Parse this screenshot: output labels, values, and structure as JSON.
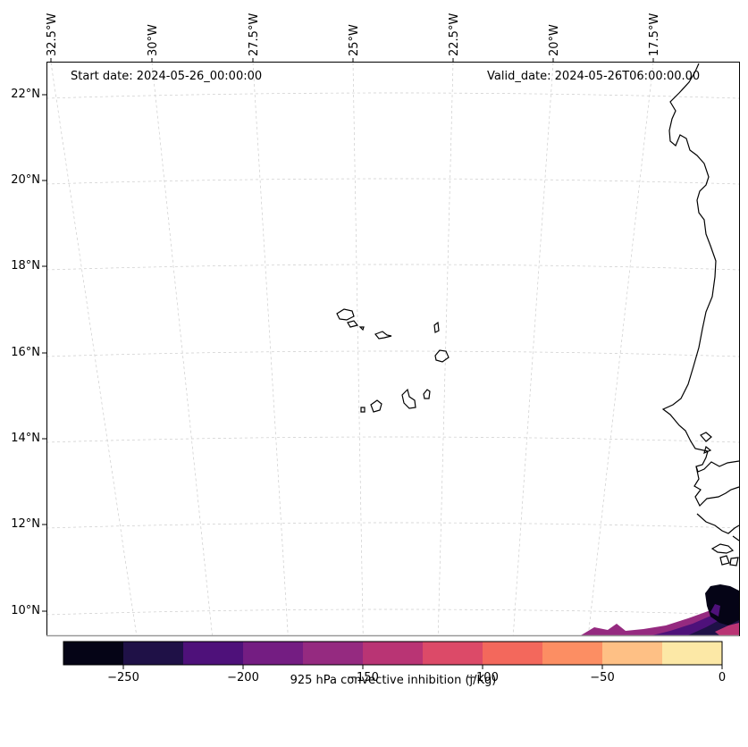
{
  "map": {
    "start_date_text": "Start date: 2024-05-26_00:00:00",
    "valid_date_text": "Valid_date: 2024-05-26T06:00:00.00",
    "lon_labels": [
      "32.5°W",
      "30°W",
      "27.5°W",
      "25°W",
      "22.5°W",
      "20°W",
      "17.5°W"
    ],
    "lat_labels": [
      "22°N",
      "20°N",
      "18°N",
      "16°N",
      "14°N",
      "12°N",
      "10°N"
    ],
    "extent": {
      "lon_min": -32.5,
      "lon_max": -16.5,
      "lat_min": 8.9,
      "lat_max": 22.7
    }
  },
  "colorbar": {
    "label": "925 hPa convective inhibition (j/Kg)",
    "min": -275,
    "max": 0,
    "tick_labels": [
      "−250",
      "−200",
      "−150",
      "−100",
      "−50",
      "0"
    ],
    "tick_values": [
      -250,
      -200,
      -150,
      -100,
      -50,
      0
    ],
    "colors": [
      "#050416",
      "#1f1147",
      "#4e117a",
      "#741d82",
      "#952a80",
      "#b93474",
      "#dc4a68",
      "#f3685c",
      "#fc8e63",
      "#fec085",
      "#fce8a6"
    ]
  },
  "colors": {
    "coastline": "#000000",
    "gridline": "#cccccc"
  }
}
